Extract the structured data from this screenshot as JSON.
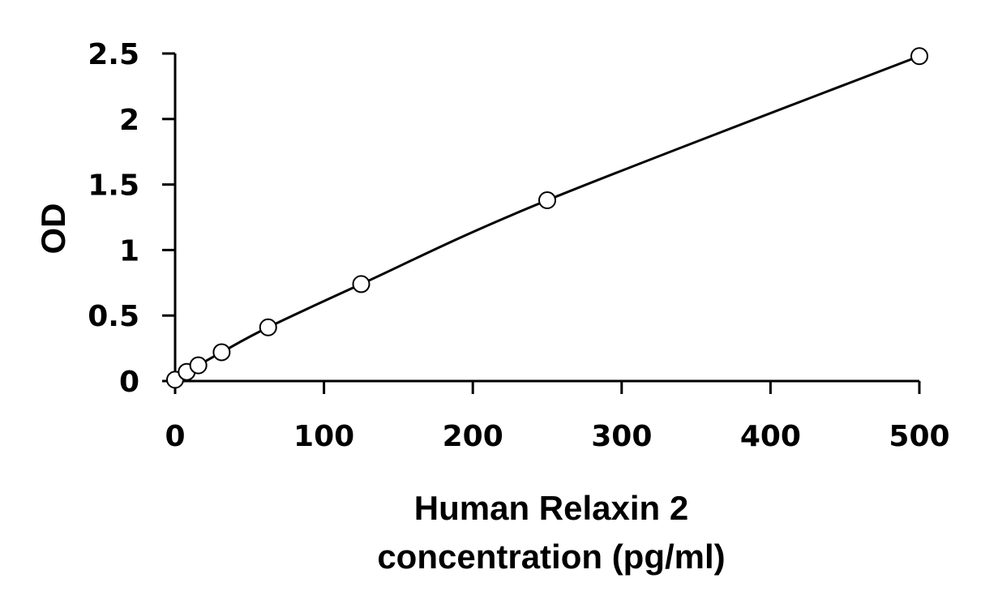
{
  "chart_data": {
    "type": "scatter",
    "title": "",
    "xlabel_lines": [
      "Human Relaxin 2",
      "concentration (pg/ml)"
    ],
    "ylabel": "OD",
    "xlim": [
      0,
      500
    ],
    "ylim": [
      0,
      2.5
    ],
    "x_ticks": [
      0,
      100,
      200,
      300,
      400,
      500
    ],
    "y_ticks": [
      0,
      0.5,
      1,
      1.5,
      2,
      2.5
    ],
    "x_tick_labels": [
      "0",
      "100",
      "200",
      "300",
      "400",
      "500"
    ],
    "y_tick_labels": [
      "0",
      "0.5",
      "1",
      "1.5",
      "2",
      "2.5"
    ],
    "grid": false,
    "legend": "none",
    "series": [
      {
        "x": [
          0,
          7.8,
          15.6,
          31.25,
          62.5,
          125,
          250,
          500
        ],
        "y": [
          0.01,
          0.07,
          0.12,
          0.22,
          0.41,
          0.74,
          1.38,
          2.48
        ],
        "marker": "open-circle",
        "fit_line": true
      }
    ]
  }
}
